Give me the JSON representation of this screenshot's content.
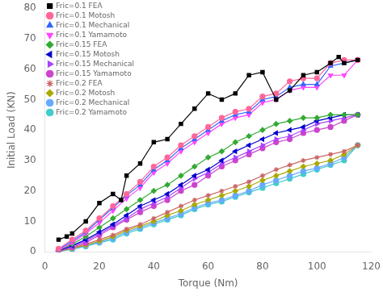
{
  "chart_data": {
    "type": "line",
    "xlabel": "Torque (Nm)",
    "ylabel": "Initial Load (KN)",
    "xlim": [
      0,
      120
    ],
    "ylim": [
      0,
      80
    ],
    "xticks": [
      0,
      20,
      40,
      60,
      80,
      100,
      120
    ],
    "yticks": [
      0,
      10,
      20,
      30,
      40,
      50,
      60,
      70,
      80
    ],
    "grid": false,
    "legend": "upper left",
    "series": [
      {
        "name": "Fric=0.1 FEA",
        "color": "#000000",
        "marker": "square",
        "line_style": "solid",
        "x": [
          5,
          8,
          10,
          15,
          20,
          25,
          28,
          30,
          35,
          40,
          45,
          50,
          55,
          60,
          65,
          70,
          75,
          80,
          85,
          90,
          95,
          100,
          105,
          108,
          110,
          115
        ],
        "values": [
          4,
          5,
          6,
          10,
          16,
          19,
          17,
          25,
          29,
          36,
          37,
          42,
          47,
          52,
          50,
          52,
          58,
          59,
          50,
          53,
          58,
          59,
          62,
          64,
          62,
          63
        ]
      },
      {
        "name": "Fric=0.1 Motosh",
        "color": "#FF6699",
        "marker": "circle",
        "line_style": "solid",
        "x": [
          5,
          10,
          15,
          20,
          25,
          30,
          35,
          40,
          45,
          50,
          55,
          60,
          65,
          70,
          75,
          80,
          85,
          90,
          95,
          100,
          105,
          110,
          115
        ],
        "values": [
          1,
          4,
          7,
          11,
          15,
          19,
          23,
          28,
          31,
          35,
          38,
          41,
          44,
          46,
          47,
          51,
          52,
          56,
          57,
          57,
          62,
          63,
          63
        ]
      },
      {
        "name": "Fric=0.1 Mechanical",
        "color": "#3366FF",
        "marker": "triangle-up",
        "line_style": "solid",
        "x": [
          5,
          10,
          15,
          20,
          25,
          30,
          35,
          40,
          45,
          50,
          55,
          60,
          65,
          70,
          75,
          80,
          85,
          90,
          95,
          100,
          105,
          110,
          115
        ],
        "values": [
          0.8,
          3.5,
          6.5,
          10.5,
          14.5,
          18.5,
          22,
          27,
          30,
          34,
          37,
          40,
          43,
          45,
          46,
          50,
          51,
          54,
          55,
          55,
          61,
          62,
          63
        ]
      },
      {
        "name": "Fric=0.1 Yamamoto",
        "color": "#FF44FF",
        "marker": "triangle-down",
        "line_style": "solid",
        "x": [
          5,
          10,
          15,
          20,
          25,
          30,
          35,
          40,
          45,
          50,
          55,
          60,
          65,
          70,
          75,
          80,
          85,
          90,
          95,
          100,
          105,
          110,
          115
        ],
        "values": [
          0.5,
          3,
          6,
          9.5,
          13.5,
          17.5,
          21,
          26,
          29,
          33,
          36,
          39,
          42,
          44,
          45,
          49,
          50,
          53,
          54,
          54,
          58,
          58,
          63
        ]
      },
      {
        "name": "Fric=0.15 FEA",
        "color": "#33AA33",
        "marker": "diamond",
        "line_style": "solid",
        "x": [
          5,
          10,
          15,
          20,
          25,
          30,
          35,
          40,
          45,
          50,
          55,
          60,
          65,
          70,
          75,
          80,
          85,
          90,
          95,
          100,
          105,
          110,
          115
        ],
        "values": [
          0.5,
          2.5,
          5,
          8,
          11,
          14,
          17,
          20,
          22,
          25,
          28,
          31,
          33,
          36,
          38,
          40,
          42,
          43,
          44,
          44,
          45,
          45,
          45
        ]
      },
      {
        "name": "Fric=0.15 Motosh",
        "color": "#0000CC",
        "marker": "triangle-left",
        "line_style": "solid",
        "x": [
          5,
          10,
          15,
          20,
          25,
          30,
          35,
          40,
          45,
          50,
          55,
          60,
          65,
          70,
          75,
          80,
          85,
          90,
          95,
          100,
          105,
          110,
          115
        ],
        "values": [
          0.4,
          2.0,
          4,
          6.5,
          9,
          12,
          15,
          17,
          19,
          22,
          25,
          27,
          30,
          33,
          35,
          37,
          39,
          40,
          41,
          43,
          44,
          45,
          45
        ]
      },
      {
        "name": "Fric=0.15 Mechanical",
        "color": "#AA44FF",
        "marker": "triangle-right",
        "line_style": "solid",
        "x": [
          5,
          10,
          15,
          20,
          25,
          30,
          35,
          40,
          45,
          50,
          55,
          60,
          65,
          70,
          75,
          80,
          85,
          90,
          95,
          100,
          105,
          110,
          115
        ],
        "values": [
          0.3,
          1.8,
          3.5,
          6,
          8.5,
          11,
          14,
          16,
          18,
          21,
          24,
          26,
          29,
          31,
          33,
          35,
          37,
          38,
          40,
          42,
          43,
          44,
          45
        ]
      },
      {
        "name": "Fric=0.15 Yamamoto",
        "color": "#CC44CC",
        "marker": "circle",
        "line_style": "solid",
        "x": [
          5,
          10,
          15,
          20,
          25,
          30,
          35,
          40,
          45,
          50,
          55,
          60,
          65,
          70,
          75,
          80,
          85,
          90,
          95,
          100,
          105,
          110,
          115
        ],
        "values": [
          0.2,
          1.5,
          3,
          5.5,
          8,
          10.5,
          13,
          15,
          17,
          20,
          22,
          25,
          28,
          30,
          32,
          34,
          36,
          37,
          39,
          40,
          41,
          43,
          45
        ]
      },
      {
        "name": "Fric=0.2 FEA",
        "color": "#CC6666",
        "marker": "star",
        "line_style": "solid",
        "x": [
          5,
          10,
          15,
          20,
          25,
          30,
          35,
          40,
          45,
          50,
          55,
          60,
          65,
          70,
          75,
          80,
          85,
          90,
          95,
          100,
          105,
          110,
          115
        ],
        "values": [
          0.2,
          1.3,
          2.5,
          4,
          5.5,
          7.5,
          9,
          11,
          13,
          15,
          17,
          18.5,
          20,
          21.5,
          23,
          25,
          27,
          28.5,
          30,
          31,
          32,
          33,
          35
        ]
      },
      {
        "name": "Fric=0.2 Motosh",
        "color": "#AAAA00",
        "marker": "diamond",
        "line_style": "solid",
        "x": [
          5,
          10,
          15,
          20,
          25,
          30,
          35,
          40,
          45,
          50,
          55,
          60,
          65,
          70,
          75,
          80,
          85,
          90,
          95,
          100,
          105,
          110,
          115
        ],
        "values": [
          0.2,
          1.1,
          2.2,
          3.5,
          5,
          7,
          8.5,
          10,
          12,
          13.5,
          15.5,
          17,
          18.5,
          20,
          21.5,
          23.5,
          25,
          26.5,
          28,
          29,
          30,
          32,
          35
        ]
      },
      {
        "name": "Fric=0.2 Mechanical",
        "color": "#66AAFF",
        "marker": "circle",
        "line_style": "solid",
        "x": [
          5,
          10,
          15,
          20,
          25,
          30,
          35,
          40,
          45,
          50,
          55,
          60,
          65,
          70,
          75,
          80,
          85,
          90,
          95,
          100,
          105,
          110,
          115
        ],
        "values": [
          0.2,
          1.0,
          2.0,
          3.2,
          4.5,
          6.5,
          8,
          9.5,
          11,
          12.5,
          14.5,
          16,
          17,
          18.5,
          20,
          22,
          23.5,
          25,
          26.5,
          27.5,
          29,
          31,
          35
        ]
      },
      {
        "name": "Fric=0.2 Yamamoto",
        "color": "#44CCCC",
        "marker": "circle",
        "line_style": "solid",
        "x": [
          5,
          10,
          15,
          20,
          25,
          30,
          35,
          40,
          45,
          50,
          55,
          60,
          65,
          70,
          75,
          80,
          85,
          90,
          95,
          100,
          105,
          110,
          115
        ],
        "values": [
          0.1,
          0.8,
          1.8,
          3,
          4,
          6,
          7.5,
          9,
          10.5,
          12,
          14,
          15.5,
          16.5,
          18,
          19.5,
          21,
          22.5,
          24,
          25.5,
          27,
          28.5,
          30,
          35
        ]
      }
    ]
  }
}
